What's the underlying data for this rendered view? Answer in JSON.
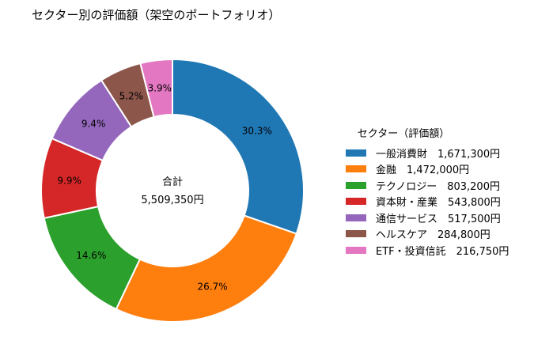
{
  "title": "セクター別の評価額（架空のポートフォリオ）",
  "chart_data": {
    "type": "pie",
    "donut": true,
    "title": "セクター別の評価額（架空のポートフォリオ）",
    "center_label": "合計",
    "center_value": "5,509,350円",
    "legend_title": "セクター（評価額）",
    "legend_position": "right",
    "categories": [
      "一般消費財",
      "金融",
      "テクノロジー",
      "資本財・産業",
      "通信サービス",
      "ヘルスケア",
      "ETF・投資信託"
    ],
    "values": [
      1671300,
      1472000,
      803200,
      543800,
      517500,
      284800,
      216750
    ],
    "percent_labels": [
      "30.3%",
      "26.7%",
      "14.6%",
      "9.9%",
      "9.4%",
      "5.2%",
      "3.9%"
    ],
    "legend_labels": [
      "一般消費財　1,671,300円",
      "金融　1,472,000円",
      "テクノロジー　803,200円",
      "資本財・産業　543,800円",
      "通信サービス　517,500円",
      "ヘルスケア　284,800円",
      "ETF・投資信託　216,750円"
    ],
    "colors": [
      "#1f77b4",
      "#ff7f0e",
      "#2ca02c",
      "#d62728",
      "#9467bd",
      "#8c564b",
      "#e377c2"
    ]
  }
}
